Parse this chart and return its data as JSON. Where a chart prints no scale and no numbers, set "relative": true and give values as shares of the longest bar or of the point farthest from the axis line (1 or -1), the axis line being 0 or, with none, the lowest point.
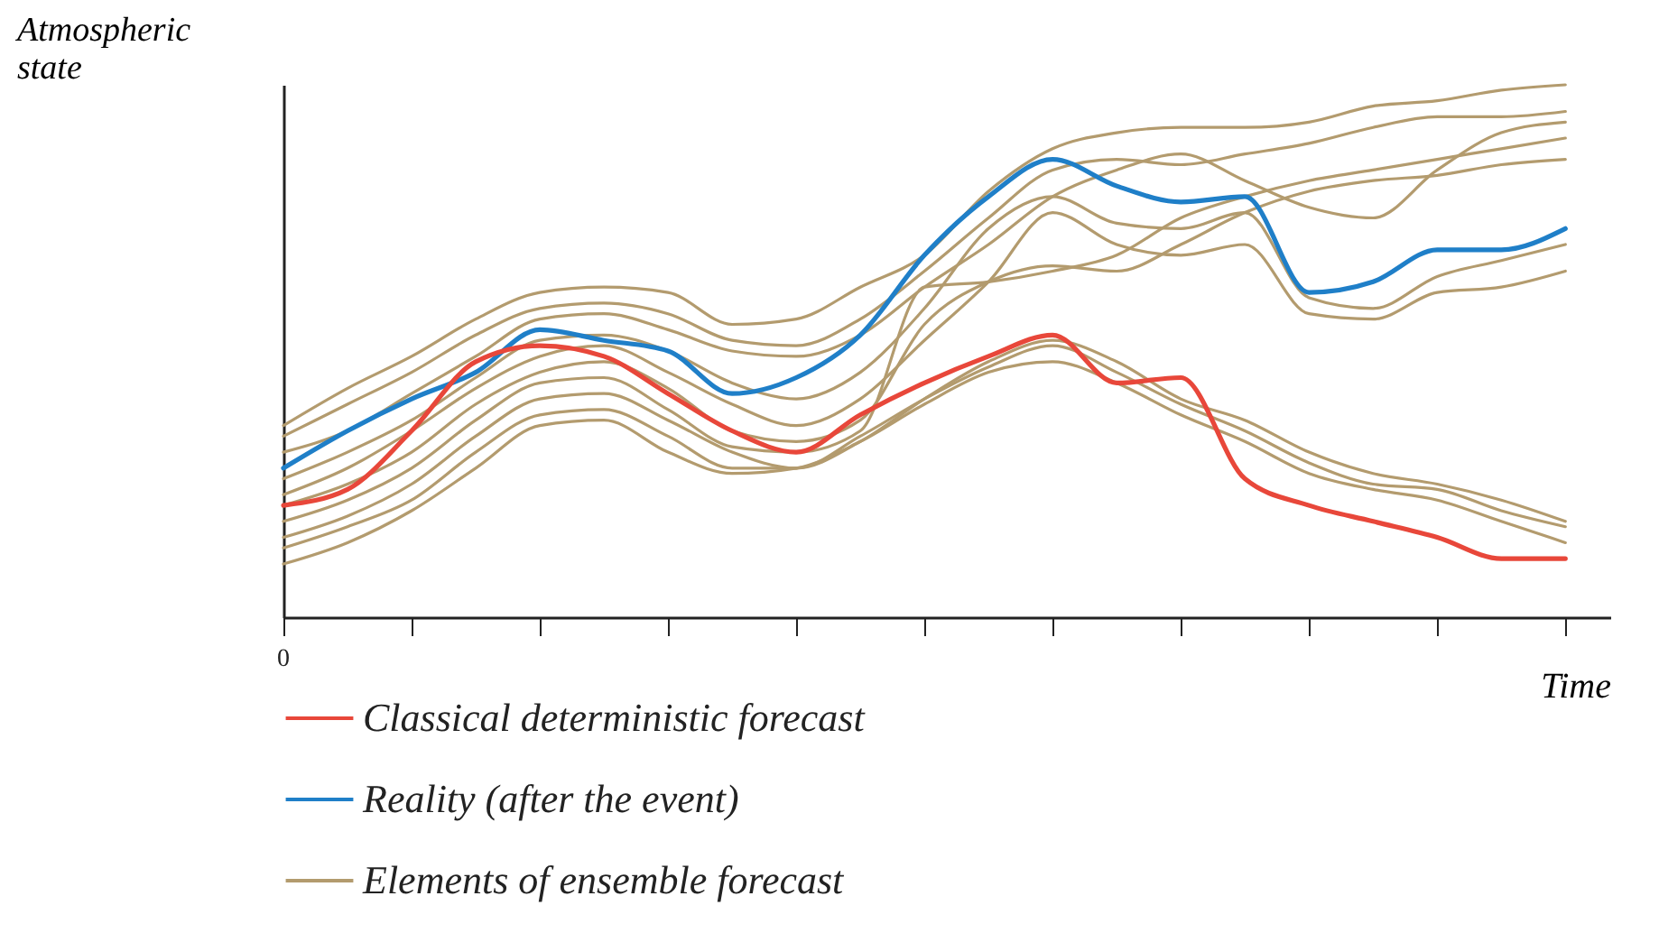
{
  "chart_data": {
    "type": "line",
    "relative": true,
    "xlabel": "Time",
    "ylabel": "Atmospheric state",
    "categories": [
      null,
      null,
      null,
      null,
      null,
      null,
      null,
      null,
      null,
      null,
      null,
      null,
      null,
      null,
      null,
      null,
      null,
      null,
      null,
      null,
      null
    ],
    "annotations": [
      "0"
    ],
    "legend": "bottom",
    "grid": false,
    "marker": "none",
    "line_style": "solid",
    "series": [
      {
        "name": "Classical deterministic forecast",
        "color": "#e8473a",
        "values": [
          0.21,
          0.24,
          0.35,
          0.48,
          0.51,
          0.49,
          0.42,
          0.35,
          0.31,
          0.38,
          0.44,
          0.49,
          0.53,
          0.44,
          0.45,
          0.26,
          0.21,
          0.18,
          0.15,
          0.11,
          0.11
        ]
      },
      {
        "name": "Reality (after the event)",
        "color": "#1f7fc8",
        "values": [
          0.28,
          0.35,
          0.41,
          0.46,
          0.54,
          0.52,
          0.5,
          0.42,
          0.45,
          0.53,
          0.68,
          0.79,
          0.86,
          0.81,
          0.78,
          0.79,
          0.61,
          0.63,
          0.69,
          0.69,
          0.73
        ]
      },
      {
        "name": "Elements of ensemble forecast",
        "color": "#b39b6e",
        "values": [
          0.36,
          0.43,
          0.49,
          0.56,
          0.61,
          0.62,
          0.61,
          0.55,
          0.56,
          0.62,
          0.68,
          0.8,
          0.88,
          0.91,
          0.92,
          0.92,
          0.93,
          0.96,
          0.97,
          0.99,
          1.0
        ]
      },
      {
        "color": "#b39b6e",
        "values": [
          0.34,
          0.4,
          0.46,
          0.53,
          0.58,
          0.59,
          0.57,
          0.52,
          0.51,
          0.56,
          0.65,
          0.75,
          0.84,
          0.86,
          0.85,
          0.87,
          0.89,
          0.92,
          0.94,
          0.94,
          0.95
        ]
      },
      {
        "color": "#b39b6e",
        "values": [
          0.31,
          0.35,
          0.42,
          0.49,
          0.56,
          0.57,
          0.54,
          0.5,
          0.49,
          0.53,
          0.62,
          0.7,
          0.79,
          0.84,
          0.87,
          0.82,
          0.77,
          0.75,
          0.84,
          0.91,
          0.93
        ]
      },
      {
        "color": "#b39b6e",
        "values": [
          0.26,
          0.31,
          0.37,
          0.45,
          0.52,
          0.53,
          0.5,
          0.44,
          0.41,
          0.46,
          0.58,
          0.73,
          0.79,
          0.74,
          0.73,
          0.76,
          0.6,
          0.58,
          0.64,
          0.67,
          0.7
        ]
      },
      {
        "color": "#b39b6e",
        "values": [
          0.23,
          0.28,
          0.35,
          0.43,
          0.49,
          0.51,
          0.46,
          0.4,
          0.36,
          0.41,
          0.52,
          0.63,
          0.76,
          0.7,
          0.68,
          0.7,
          0.57,
          0.56,
          0.61,
          0.62,
          0.65
        ]
      },
      {
        "color": "#b39b6e",
        "values": [
          0.21,
          0.25,
          0.31,
          0.4,
          0.46,
          0.48,
          0.43,
          0.35,
          0.33,
          0.37,
          0.55,
          0.63,
          0.66,
          0.65,
          0.7,
          0.76,
          0.8,
          0.82,
          0.83,
          0.85,
          0.86
        ]
      },
      {
        "color": "#b39b6e",
        "values": [
          0.18,
          0.22,
          0.28,
          0.37,
          0.44,
          0.45,
          0.39,
          0.32,
          0.31,
          0.35,
          0.62,
          0.63,
          0.65,
          0.68,
          0.75,
          0.79,
          0.82,
          0.84,
          0.86,
          0.88,
          0.9
        ]
      },
      {
        "color": "#b39b6e",
        "values": [
          0.15,
          0.19,
          0.25,
          0.34,
          0.41,
          0.42,
          0.37,
          0.31,
          0.28,
          0.33,
          0.41,
          0.48,
          0.52,
          0.48,
          0.41,
          0.37,
          0.31,
          0.27,
          0.25,
          0.22,
          0.18
        ]
      },
      {
        "color": "#b39b6e",
        "values": [
          0.13,
          0.17,
          0.22,
          0.31,
          0.38,
          0.39,
          0.34,
          0.28,
          0.28,
          0.34,
          0.41,
          0.47,
          0.51,
          0.46,
          0.4,
          0.35,
          0.29,
          0.25,
          0.24,
          0.2,
          0.17
        ]
      },
      {
        "color": "#b39b6e",
        "values": [
          0.1,
          0.14,
          0.2,
          0.28,
          0.36,
          0.37,
          0.31,
          0.27,
          0.28,
          0.33,
          0.4,
          0.46,
          0.48,
          0.44,
          0.38,
          0.33,
          0.27,
          0.24,
          0.22,
          0.18,
          0.14
        ]
      }
    ]
  }
}
